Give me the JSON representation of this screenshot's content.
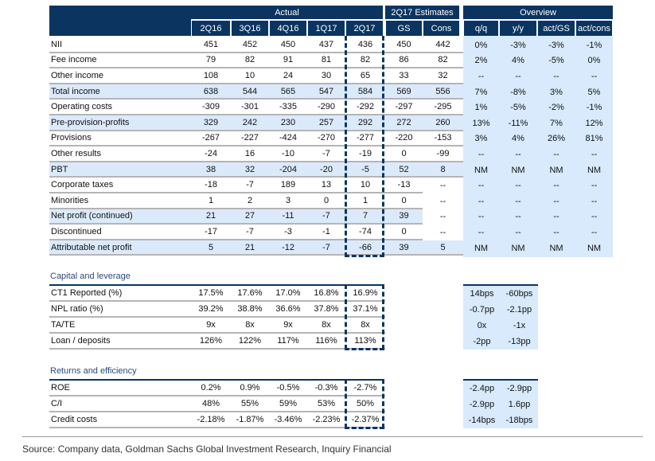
{
  "header": {
    "groups": {
      "actual": "Actual",
      "estimates": "2Q17 Estimates",
      "overview": "Overview"
    },
    "columns": [
      "2Q16",
      "3Q16",
      "4Q16",
      "1Q17",
      "2Q17",
      "GS",
      "Cons",
      "q/q",
      "y/y",
      "act/GS",
      "act/cons"
    ]
  },
  "income_rows": [
    {
      "label": "NII",
      "values": [
        "451",
        "452",
        "450",
        "437",
        "436",
        "450",
        "442",
        "0%",
        "-3%",
        "-3%",
        "-1%"
      ],
      "highlight": false
    },
    {
      "label": "Fee income",
      "values": [
        "79",
        "82",
        "91",
        "81",
        "82",
        "86",
        "82",
        "2%",
        "4%",
        "-5%",
        "0%"
      ],
      "highlight": false
    },
    {
      "label": "Other income",
      "values": [
        "108",
        "10",
        "24",
        "30",
        "65",
        "33",
        "32",
        "--",
        "--",
        "--",
        "--"
      ],
      "highlight": false
    },
    {
      "label": "Total income",
      "values": [
        "638",
        "544",
        "565",
        "547",
        "584",
        "569",
        "556",
        "7%",
        "-8%",
        "3%",
        "5%"
      ],
      "highlight": true
    },
    {
      "label": "Operating costs",
      "values": [
        "-309",
        "-301",
        "-335",
        "-290",
        "-292",
        "-297",
        "-295",
        "1%",
        "-5%",
        "-2%",
        "-1%"
      ],
      "highlight": false
    },
    {
      "label": "Pre-provision-profits",
      "values": [
        "329",
        "242",
        "230",
        "257",
        "292",
        "272",
        "260",
        "13%",
        "-11%",
        "7%",
        "12%"
      ],
      "highlight": true
    },
    {
      "label": "Provisions",
      "values": [
        "-267",
        "-227",
        "-424",
        "-270",
        "-277",
        "-220",
        "-153",
        "3%",
        "4%",
        "26%",
        "81%"
      ],
      "highlight": false
    },
    {
      "label": "Other results",
      "values": [
        "-24",
        "16",
        "-10",
        "-7",
        "-19",
        "0",
        "-99",
        "--",
        "--",
        "--",
        "--"
      ],
      "highlight": false
    },
    {
      "label": "PBT",
      "values": [
        "38",
        "32",
        "-204",
        "-20",
        "-5",
        "52",
        "8",
        "NM",
        "NM",
        "NM",
        "NM"
      ],
      "highlight": true
    },
    {
      "label": "Corporate taxes",
      "values": [
        "-18",
        "-7",
        "189",
        "13",
        "10",
        "-13",
        "--",
        "--",
        "--",
        "--",
        "--"
      ],
      "highlight": false,
      "cons_open": true
    },
    {
      "label": "Minorities",
      "values": [
        "1",
        "2",
        "3",
        "0",
        "1",
        "0",
        "--",
        "--",
        "--",
        "--",
        "--"
      ],
      "highlight": false,
      "cons_open": true
    },
    {
      "label": "Net profit (continued)",
      "values": [
        "21",
        "27",
        "-11",
        "-7",
        "7",
        "39",
        "--",
        "--",
        "--",
        "--",
        "--"
      ],
      "highlight": true,
      "cons_open": true
    },
    {
      "label": "Discontinued",
      "values": [
        "-17",
        "-7",
        "-3",
        "-1",
        "-74",
        "0",
        "--",
        "--",
        "--",
        "--",
        "--"
      ],
      "highlight": false,
      "cons_open": true
    },
    {
      "label": "Attributable net profit",
      "values": [
        "5",
        "21",
        "-12",
        "-7",
        "-66",
        "39",
        "5",
        "NM",
        "NM",
        "NM",
        "NM"
      ],
      "highlight": true
    }
  ],
  "capital": {
    "title": "Capital and leverage",
    "rows": [
      {
        "label": "CT1 Reported (%)",
        "values": [
          "17.5%",
          "17.6%",
          "17.0%",
          "16.8%",
          "16.9%"
        ],
        "overview": [
          "14bps",
          "-60bps"
        ]
      },
      {
        "label": "NPL ratio (%)",
        "values": [
          "39.2%",
          "38.8%",
          "36.6%",
          "37.8%",
          "37.1%"
        ],
        "overview": [
          "-0.7pp",
          "-2.1pp"
        ]
      },
      {
        "label": "TA/TE",
        "values": [
          "9x",
          "8x",
          "9x",
          "8x",
          "8x"
        ],
        "overview": [
          "0x",
          "-1x"
        ]
      },
      {
        "label": "Loan / deposits",
        "values": [
          "126%",
          "122%",
          "117%",
          "116%",
          "113%"
        ],
        "overview": [
          "-2pp",
          "-13pp"
        ]
      }
    ]
  },
  "returns": {
    "title": "Returns and efficiency",
    "rows": [
      {
        "label": "ROE",
        "values": [
          "0.2%",
          "0.9%",
          "-0.5%",
          "-0.3%",
          "-2.7%"
        ],
        "overview": [
          "-2.4pp",
          "-2.9pp"
        ]
      },
      {
        "label": "C/I",
        "values": [
          "48%",
          "55%",
          "59%",
          "53%",
          "50%"
        ],
        "overview": [
          "-2.9pp",
          "1.6pp"
        ]
      },
      {
        "label": "Credit costs",
        "values": [
          "-2.18%",
          "-1.87%",
          "-3.46%",
          "-2.23%",
          "-2.37%"
        ],
        "overview": [
          "-14bps",
          "-18bps"
        ]
      }
    ]
  },
  "source": "Source: Company data, Goldman Sachs Global Investment Research, Inquiry Financial",
  "colors": {
    "navy": "#0b3560",
    "highlight": "#dbeafb",
    "separator": "#b5b5b5"
  }
}
